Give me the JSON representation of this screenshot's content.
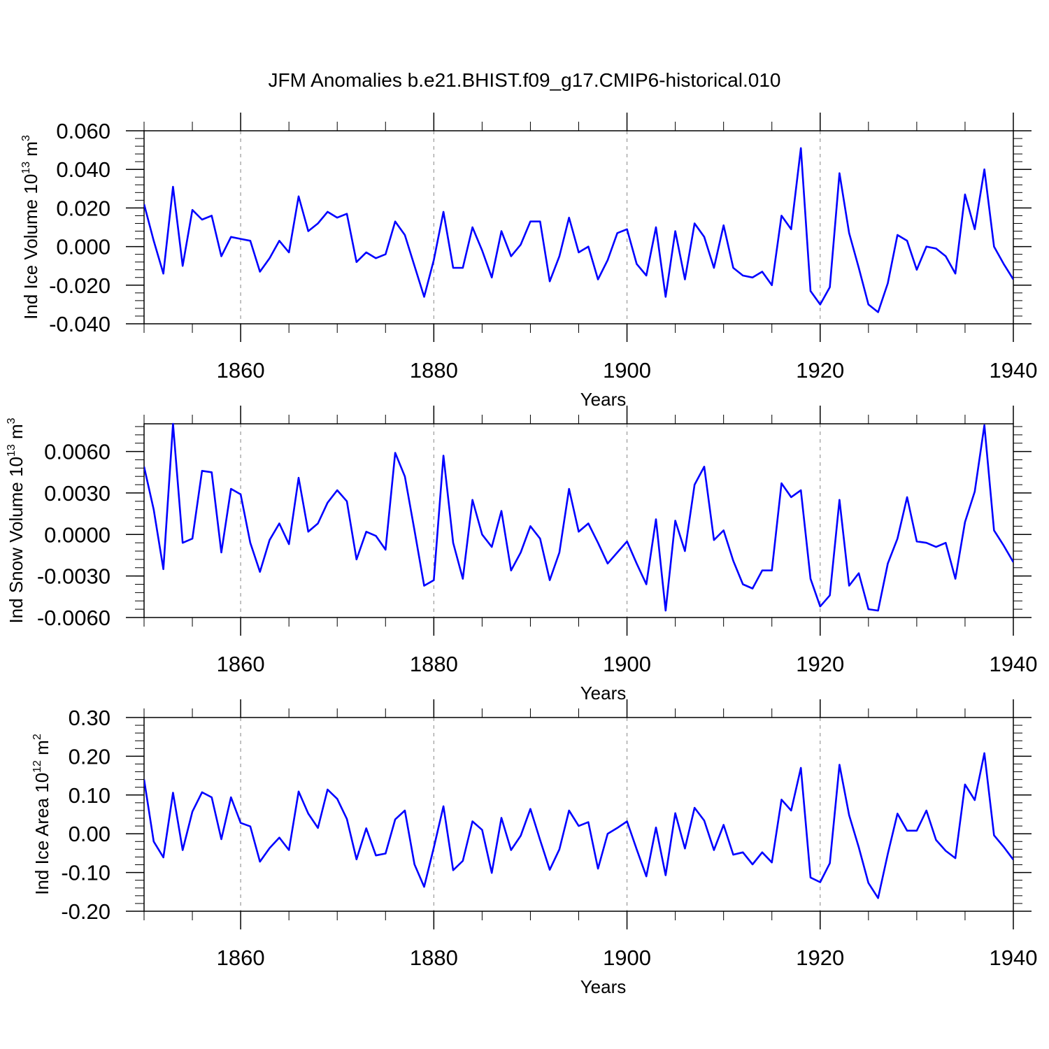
{
  "figure": {
    "title": "JFM Anomalies b.e21.BHIST.f09_g17.CMIP6-historical.010",
    "line_color": "#0000ff",
    "grid_color": "#999999"
  },
  "chart_data": [
    {
      "type": "line",
      "title": "JFM Anomalies b.e21.BHIST.f09_g17.CMIP6-historical.010",
      "xlabel": "Years",
      "ylabel": "Ind Ice Volume 10^13 m^3",
      "ylabel_main": "Ind Ice Volume 10",
      "ylabel_exp": "13",
      "ylabel_unit": " m",
      "ylabel_unit_exp": "3",
      "xlim": [
        1850,
        1940
      ],
      "ylim": [
        -0.04,
        0.06
      ],
      "yticks": [
        -0.04,
        -0.02,
        0.0,
        0.02,
        0.04,
        0.06
      ],
      "ytick_labels": [
        "-0.040",
        "-0.020",
        "0.000",
        "0.020",
        "0.040",
        "0.060"
      ],
      "xticks": [
        1860,
        1880,
        1900,
        1920,
        1940
      ],
      "xtick_labels": [
        "1860",
        "1880",
        "1900",
        "1920",
        "1940"
      ],
      "grid_x": [
        1860,
        1880,
        1900,
        1920
      ],
      "series": [
        {
          "name": "Ind Ice Volume",
          "x_start": 1850,
          "values": [
            0.022,
            0.003,
            -0.014,
            0.031,
            -0.01,
            0.019,
            0.014,
            0.016,
            -0.005,
            0.005,
            0.004,
            0.003,
            -0.013,
            -0.006,
            0.003,
            -0.003,
            0.026,
            0.008,
            0.012,
            0.018,
            0.015,
            0.017,
            -0.008,
            -0.003,
            -0.006,
            -0.004,
            0.013,
            0.006,
            -0.01,
            -0.026,
            -0.007,
            0.018,
            -0.011,
            -0.011,
            0.01,
            -0.002,
            -0.016,
            0.008,
            -0.005,
            0.001,
            0.013,
            0.013,
            -0.018,
            -0.005,
            0.015,
            -0.003,
            0.0,
            -0.017,
            -0.007,
            0.007,
            0.009,
            -0.009,
            -0.015,
            0.01,
            -0.026,
            0.008,
            -0.017,
            0.012,
            0.005,
            -0.011,
            0.011,
            -0.011,
            -0.015,
            -0.016,
            -0.013,
            -0.02,
            0.016,
            0.009,
            0.051,
            -0.023,
            -0.03,
            -0.021,
            0.038,
            0.007,
            -0.011,
            -0.03,
            -0.034,
            -0.019,
            0.006,
            0.003,
            -0.012,
            0.0,
            -0.001,
            -0.005,
            -0.014,
            0.027,
            0.009,
            0.04,
            0.0,
            -0.009,
            -0.017
          ]
        }
      ]
    },
    {
      "type": "line",
      "xlabel": "Years",
      "ylabel": "Ind Snow Volume 10^13 m^3",
      "ylabel_main": "Ind Snow Volume 10",
      "ylabel_exp": "13",
      "ylabel_unit": " m",
      "ylabel_unit_exp": "3",
      "xlim": [
        1850,
        1940
      ],
      "ylim": [
        -0.006,
        0.008
      ],
      "yticks": [
        -0.006,
        -0.003,
        0.0,
        0.003,
        0.006
      ],
      "ytick_labels": [
        "-0.0060",
        "-0.0030",
        "0.0000",
        "0.0030",
        "0.0060"
      ],
      "xticks": [
        1860,
        1880,
        1900,
        1920,
        1940
      ],
      "xtick_labels": [
        "1860",
        "1880",
        "1900",
        "1920",
        "1940"
      ],
      "grid_x": [
        1860,
        1880,
        1900,
        1920
      ],
      "series": [
        {
          "name": "Ind Snow Volume",
          "x_start": 1850,
          "values": [
            0.0049,
            0.0018,
            -0.0025,
            0.008,
            -0.0006,
            -0.0003,
            0.0046,
            0.0045,
            -0.0013,
            0.0033,
            0.0029,
            -0.0006,
            -0.0027,
            -0.0004,
            0.0008,
            -0.0007,
            0.0041,
            0.0002,
            0.0008,
            0.0023,
            0.0032,
            0.0024,
            -0.0018,
            0.0002,
            -0.0001,
            -0.0011,
            0.0059,
            0.0042,
            0.0003,
            -0.0037,
            -0.0033,
            0.0057,
            -0.0006,
            -0.0032,
            0.0025,
            0.0,
            -0.0009,
            0.0017,
            -0.0026,
            -0.0013,
            0.0006,
            -0.0003,
            -0.0033,
            -0.0013,
            0.0033,
            0.0002,
            0.0008,
            -0.0006,
            -0.0021,
            -0.0013,
            -0.0005,
            -0.0021,
            -0.0036,
            0.0011,
            -0.0055,
            0.001,
            -0.0012,
            0.0036,
            0.0049,
            -0.0004,
            0.0003,
            -0.0019,
            -0.0036,
            -0.0039,
            -0.0026,
            -0.0026,
            0.0037,
            0.0027,
            0.0032,
            -0.0032,
            -0.0052,
            -0.0044,
            0.0025,
            -0.0037,
            -0.0028,
            -0.0054,
            -0.0055,
            -0.0021,
            -0.0003,
            0.0027,
            -0.0005,
            -0.0006,
            -0.0009,
            -0.0006,
            -0.0032,
            0.0009,
            0.0031,
            0.0079,
            0.0003,
            -0.0008,
            -0.002
          ]
        }
      ]
    },
    {
      "type": "line",
      "xlabel": "Years",
      "ylabel": "Ind Ice Area 10^12 m^2",
      "ylabel_main": "Ind Ice Area 10",
      "ylabel_exp": "12",
      "ylabel_unit": " m",
      "ylabel_unit_exp": "2",
      "xlim": [
        1850,
        1940
      ],
      "ylim": [
        -0.2,
        0.3
      ],
      "yticks": [
        -0.2,
        -0.1,
        0.0,
        0.1,
        0.2,
        0.3
      ],
      "ytick_labels": [
        "-0.20",
        "-0.10",
        "0.00",
        "0.10",
        "0.20",
        "0.30"
      ],
      "xticks": [
        1860,
        1880,
        1900,
        1920,
        1940
      ],
      "xtick_labels": [
        "1860",
        "1880",
        "1900",
        "1920",
        "1940"
      ],
      "grid_x": [
        1860,
        1880,
        1900,
        1920
      ],
      "series": [
        {
          "name": "Ind Ice Area",
          "x_start": 1850,
          "values": [
            0.14,
            -0.02,
            -0.061,
            0.106,
            -0.042,
            0.057,
            0.107,
            0.094,
            -0.014,
            0.094,
            0.028,
            0.019,
            -0.072,
            -0.037,
            -0.01,
            -0.042,
            0.109,
            0.052,
            0.015,
            0.114,
            0.09,
            0.038,
            -0.066,
            0.014,
            -0.056,
            -0.051,
            0.037,
            0.06,
            -0.079,
            -0.137,
            -0.036,
            0.071,
            -0.094,
            -0.07,
            0.032,
            0.01,
            -0.101,
            0.041,
            -0.042,
            -0.005,
            0.064,
            -0.016,
            -0.093,
            -0.04,
            0.06,
            0.02,
            0.03,
            -0.09,
            0.0,
            0.015,
            0.032,
            -0.04,
            -0.11,
            0.016,
            -0.107,
            0.053,
            -0.038,
            0.067,
            0.034,
            -0.042,
            0.023,
            -0.054,
            -0.048,
            -0.079,
            -0.048,
            -0.074,
            0.088,
            0.06,
            0.17,
            -0.113,
            -0.125,
            -0.076,
            0.178,
            0.048,
            -0.035,
            -0.127,
            -0.166,
            -0.052,
            0.052,
            0.008,
            0.008,
            0.06,
            -0.016,
            -0.044,
            -0.063,
            0.127,
            0.087,
            0.208,
            -0.004,
            -0.034,
            -0.067
          ]
        }
      ]
    }
  ]
}
